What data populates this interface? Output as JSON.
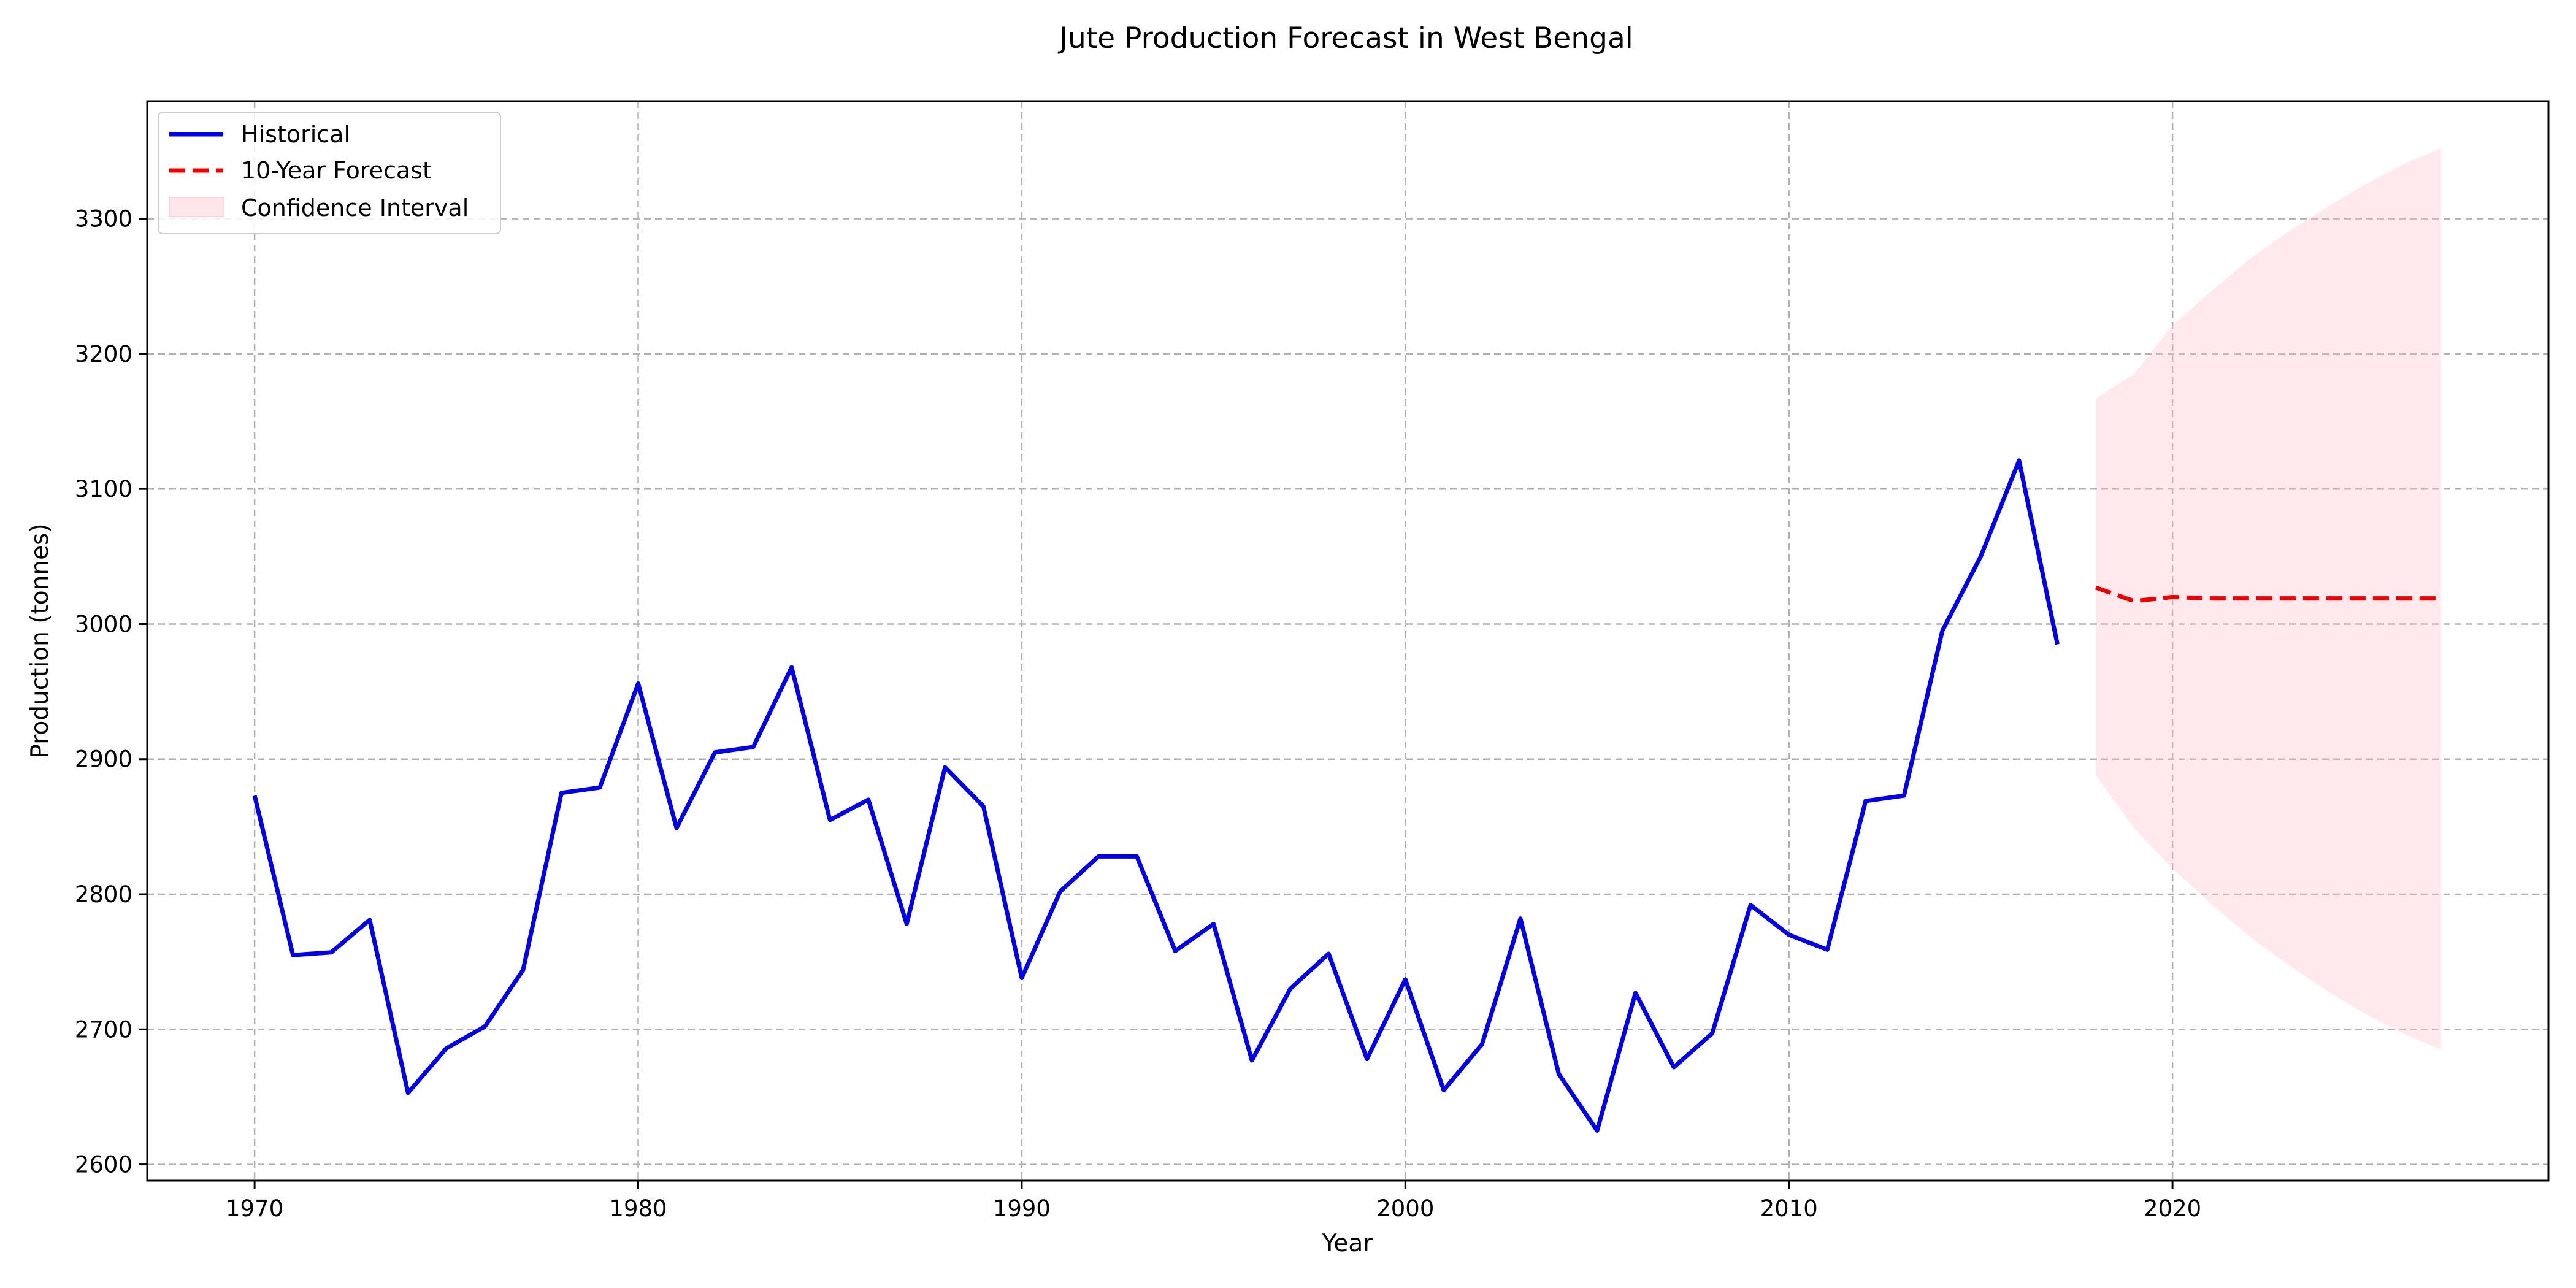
{
  "chart_data": {
    "type": "line",
    "title": "Jute Production Forecast in West Bengal",
    "xlabel": "Year",
    "ylabel": "Production (tonnes)",
    "xlim": [
      1967.2,
      2029.8
    ],
    "ylim": [
      2588,
      3387
    ],
    "x_ticks": [
      1970,
      1980,
      1990,
      2000,
      2010,
      2020
    ],
    "y_ticks": [
      2600,
      2700,
      2800,
      2900,
      3000,
      3100,
      3200,
      3300
    ],
    "grid": true,
    "legend_position": "top-left",
    "colors": {
      "historical": "#0000ee",
      "forecast": "#ee0000",
      "confidence_fill": "#ffc0cb"
    },
    "series": [
      {
        "name": "Historical",
        "style": "solid",
        "x": [
          1970,
          1971,
          1972,
          1973,
          1974,
          1975,
          1976,
          1977,
          1978,
          1979,
          1980,
          1981,
          1982,
          1983,
          1984,
          1985,
          1986,
          1987,
          1988,
          1989,
          1990,
          1991,
          1992,
          1993,
          1994,
          1995,
          1996,
          1997,
          1998,
          1999,
          2000,
          2001,
          2002,
          2003,
          2004,
          2005,
          2006,
          2007,
          2008,
          2009,
          2010,
          2011,
          2012,
          2013,
          2014,
          2015,
          2016,
          2017
        ],
        "y": [
          2873,
          2755,
          2757,
          2781,
          2653,
          2686,
          2702,
          2744,
          2875,
          2879,
          2956,
          2849,
          2905,
          2909,
          2968,
          2855,
          2870,
          2778,
          2894,
          2865,
          2738,
          2802,
          2828,
          2828,
          2758,
          2778,
          2677,
          2730,
          2756,
          2678,
          2737,
          2655,
          2689,
          2782,
          2667,
          2625,
          2727,
          2672,
          2697,
          2792,
          2770,
          2759,
          2869,
          2873,
          2995,
          3050,
          3121,
          2985
        ]
      },
      {
        "name": "10-Year Forecast",
        "style": "dashed",
        "x": [
          2018,
          2019,
          2020,
          2021,
          2022,
          2023,
          2024,
          2025,
          2026,
          2027
        ],
        "y": [
          3027,
          3017,
          3020,
          3019,
          3019,
          3019,
          3019,
          3019,
          3019,
          3019
        ]
      },
      {
        "name": "Confidence Interval",
        "style": "band",
        "x": [
          2018,
          2019,
          2020,
          2021,
          2022,
          2023,
          2024,
          2025,
          2026,
          2027
        ],
        "lower": [
          2888,
          2849,
          2819,
          2793,
          2769,
          2748,
          2729,
          2712,
          2697,
          2685
        ],
        "upper": [
          3167,
          3185,
          3221,
          3246,
          3270,
          3290,
          3308,
          3325,
          3340,
          3352
        ]
      }
    ]
  }
}
